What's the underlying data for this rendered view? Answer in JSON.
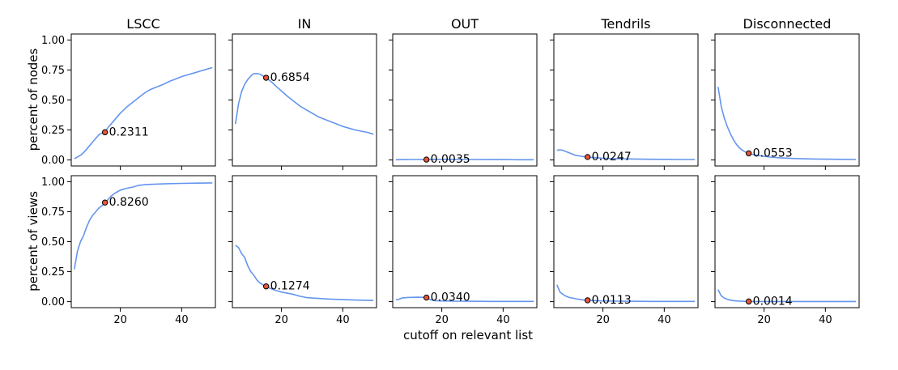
{
  "figure": {
    "xlabel": "cutoff on relevant list",
    "row_ylabels": [
      "percent of nodes",
      "percent of views"
    ],
    "column_titles": [
      "LSCC",
      "IN",
      "OUT",
      "Tendrils",
      "Disconnected"
    ],
    "line_color": "#6495ed",
    "marker_color": "#e8553a"
  },
  "chart_data": [
    {
      "type": "line",
      "title": "LSCC",
      "ylabel": "percent of nodes",
      "xlim": [
        4,
        51
      ],
      "ylim": [
        -0.05,
        1.05
      ],
      "xticks": [
        20,
        40
      ],
      "yticks": [
        0,
        0.25,
        0.5,
        0.75,
        1.0
      ],
      "x": [
        5,
        6,
        7,
        8,
        9,
        10,
        11,
        12,
        13,
        14,
        15,
        16,
        17,
        18,
        19,
        20,
        22,
        24,
        26,
        28,
        30,
        32,
        34,
        36,
        38,
        40,
        42,
        44,
        46,
        48,
        50
      ],
      "y": [
        0.01,
        0.025,
        0.04,
        0.06,
        0.09,
        0.12,
        0.15,
        0.18,
        0.21,
        0.225,
        0.2311,
        0.27,
        0.3,
        0.33,
        0.36,
        0.39,
        0.44,
        0.48,
        0.52,
        0.56,
        0.59,
        0.61,
        0.63,
        0.655,
        0.675,
        0.695,
        0.71,
        0.725,
        0.74,
        0.755,
        0.77
      ],
      "annotation": {
        "x": 15,
        "y": 0.2311,
        "label": "0.2311"
      }
    },
    {
      "type": "line",
      "title": "IN",
      "xlim": [
        4,
        51
      ],
      "ylim": [
        -0.05,
        1.05
      ],
      "xticks": [
        20,
        40
      ],
      "yticks": [
        0,
        0.25,
        0.5,
        0.75,
        1.0
      ],
      "x": [
        5,
        6,
        7,
        8,
        9,
        10,
        11,
        12,
        13,
        14,
        15,
        16,
        17,
        18,
        20,
        22,
        24,
        26,
        28,
        30,
        32,
        34,
        36,
        38,
        40,
        42,
        44,
        46,
        48,
        50
      ],
      "y": [
        0.3,
        0.47,
        0.57,
        0.63,
        0.67,
        0.7,
        0.72,
        0.72,
        0.715,
        0.7,
        0.6854,
        0.665,
        0.645,
        0.62,
        0.575,
        0.53,
        0.49,
        0.45,
        0.42,
        0.39,
        0.36,
        0.34,
        0.32,
        0.3,
        0.28,
        0.265,
        0.25,
        0.24,
        0.23,
        0.215
      ],
      "annotation": {
        "x": 15,
        "y": 0.6854,
        "label": "0.6854"
      }
    },
    {
      "type": "line",
      "title": "OUT",
      "xlim": [
        4,
        51
      ],
      "ylim": [
        -0.05,
        1.05
      ],
      "xticks": [
        20,
        40
      ],
      "yticks": [
        0,
        0.25,
        0.5,
        0.75,
        1.0
      ],
      "x": [
        5,
        8,
        10,
        12,
        15,
        18,
        20,
        25,
        30,
        35,
        40,
        45,
        50
      ],
      "y": [
        0.002,
        0.003,
        0.004,
        0.004,
        0.0035,
        0.005,
        0.005,
        0.004,
        0.004,
        0.003,
        0.003,
        0.002,
        0.002
      ],
      "annotation": {
        "x": 15,
        "y": 0.0035,
        "label": "0.0035"
      }
    },
    {
      "type": "line",
      "title": "Tendrils",
      "xlim": [
        4,
        51
      ],
      "ylim": [
        -0.05,
        1.05
      ],
      "xticks": [
        20,
        40
      ],
      "yticks": [
        0,
        0.25,
        0.5,
        0.75,
        1.0
      ],
      "x": [
        5,
        6,
        7,
        8,
        9,
        10,
        11,
        12,
        13,
        14,
        15,
        16,
        18,
        20,
        22,
        25,
        30,
        35,
        40,
        45,
        50
      ],
      "y": [
        0.08,
        0.085,
        0.08,
        0.07,
        0.06,
        0.05,
        0.04,
        0.035,
        0.03,
        0.027,
        0.0247,
        0.022,
        0.018,
        0.015,
        0.013,
        0.01,
        0.008,
        0.006,
        0.005,
        0.004,
        0.004
      ],
      "annotation": {
        "x": 15,
        "y": 0.0247,
        "label": "0.0247"
      }
    },
    {
      "type": "line",
      "title": "Disconnected",
      "xlim": [
        4,
        51
      ],
      "ylim": [
        -0.05,
        1.05
      ],
      "xticks": [
        20,
        40
      ],
      "yticks": [
        0,
        0.25,
        0.5,
        0.75,
        1.0
      ],
      "x": [
        5,
        6,
        7,
        8,
        9,
        10,
        11,
        12,
        13,
        14,
        15,
        16,
        18,
        20,
        22,
        25,
        30,
        35,
        40,
        45,
        50
      ],
      "y": [
        0.61,
        0.45,
        0.35,
        0.28,
        0.22,
        0.17,
        0.13,
        0.1,
        0.08,
        0.065,
        0.0553,
        0.048,
        0.038,
        0.03,
        0.024,
        0.018,
        0.012,
        0.009,
        0.007,
        0.005,
        0.004
      ],
      "annotation": {
        "x": 15,
        "y": 0.0553,
        "label": "0.0553"
      }
    },
    {
      "type": "line",
      "ylabel": "percent of views",
      "xlim": [
        4,
        51
      ],
      "ylim": [
        -0.05,
        1.05
      ],
      "xticks": [
        20,
        40
      ],
      "yticks": [
        0,
        0.25,
        0.5,
        0.75,
        1.0
      ],
      "x": [
        5,
        6,
        7,
        8,
        9,
        10,
        11,
        12,
        13,
        14,
        15,
        16,
        17,
        18,
        19,
        20,
        22,
        24,
        26,
        28,
        30,
        35,
        40,
        45,
        50
      ],
      "y": [
        0.27,
        0.42,
        0.5,
        0.55,
        0.62,
        0.68,
        0.72,
        0.75,
        0.78,
        0.8,
        0.826,
        0.85,
        0.88,
        0.9,
        0.915,
        0.93,
        0.945,
        0.955,
        0.97,
        0.975,
        0.978,
        0.983,
        0.986,
        0.988,
        0.99
      ],
      "annotation": {
        "x": 15,
        "y": 0.826,
        "label": "0.8260"
      }
    },
    {
      "type": "line",
      "xlim": [
        4,
        51
      ],
      "ylim": [
        -0.05,
        1.05
      ],
      "xticks": [
        20,
        40
      ],
      "yticks": [
        0,
        0.25,
        0.5,
        0.75,
        1.0
      ],
      "x": [
        5,
        6,
        7,
        8,
        9,
        10,
        11,
        12,
        13,
        14,
        15,
        16,
        18,
        20,
        22,
        24,
        26,
        28,
        30,
        35,
        40,
        45,
        50
      ],
      "y": [
        0.47,
        0.45,
        0.4,
        0.37,
        0.3,
        0.25,
        0.22,
        0.18,
        0.155,
        0.14,
        0.1274,
        0.115,
        0.095,
        0.08,
        0.07,
        0.06,
        0.045,
        0.035,
        0.03,
        0.022,
        0.017,
        0.013,
        0.01
      ],
      "annotation": {
        "x": 15,
        "y": 0.1274,
        "label": "0.1274"
      }
    },
    {
      "type": "line",
      "xlim": [
        4,
        51
      ],
      "ylim": [
        -0.05,
        1.05
      ],
      "xticks": [
        20,
        40
      ],
      "yticks": [
        0,
        0.25,
        0.5,
        0.75,
        1.0
      ],
      "x": [
        5,
        6,
        7,
        8,
        9,
        10,
        12,
        14,
        15,
        16,
        17,
        18,
        20,
        25,
        30,
        35,
        40,
        45,
        50
      ],
      "y": [
        0.015,
        0.02,
        0.03,
        0.033,
        0.035,
        0.036,
        0.037,
        0.036,
        0.034,
        0.02,
        0.012,
        0.008,
        0.006,
        0.004,
        0.003,
        0.002,
        0.002,
        0.002,
        0.002
      ],
      "annotation": {
        "x": 15,
        "y": 0.034,
        "label": "0.0340"
      }
    },
    {
      "type": "line",
      "xlim": [
        4,
        51
      ],
      "ylim": [
        -0.05,
        1.05
      ],
      "xticks": [
        20,
        40
      ],
      "yticks": [
        0,
        0.25,
        0.5,
        0.75,
        1.0
      ],
      "x": [
        5,
        6,
        7,
        8,
        9,
        10,
        11,
        12,
        13,
        14,
        15,
        16,
        18,
        20,
        25,
        30,
        35,
        40,
        45,
        50
      ],
      "y": [
        0.14,
        0.08,
        0.06,
        0.045,
        0.035,
        0.03,
        0.025,
        0.02,
        0.016,
        0.013,
        0.0113,
        0.01,
        0.008,
        0.006,
        0.004,
        0.003,
        0.002,
        0.002,
        0.002,
        0.002
      ],
      "annotation": {
        "x": 15,
        "y": 0.0113,
        "label": "0.0113"
      }
    },
    {
      "type": "line",
      "xlim": [
        4,
        51
      ],
      "ylim": [
        -0.05,
        1.05
      ],
      "xticks": [
        20,
        40
      ],
      "yticks": [
        0,
        0.25,
        0.5,
        0.75,
        1.0
      ],
      "x": [
        5,
        6,
        7,
        8,
        9,
        10,
        11,
        12,
        13,
        14,
        15,
        16,
        18,
        20,
        25,
        30,
        35,
        40,
        45,
        50
      ],
      "y": [
        0.1,
        0.05,
        0.03,
        0.02,
        0.013,
        0.009,
        0.006,
        0.004,
        0.003,
        0.002,
        0.0014,
        0.001,
        0.001,
        0.001,
        0.001,
        0.001,
        0.001,
        0.001,
        0.001,
        0.001
      ],
      "annotation": {
        "x": 15,
        "y": 0.0014,
        "label": "0.0014"
      }
    }
  ]
}
